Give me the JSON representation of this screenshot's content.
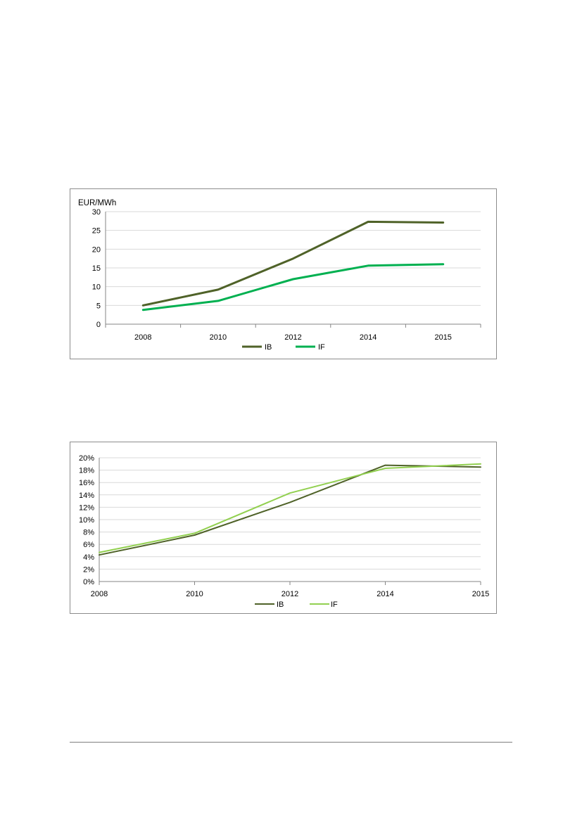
{
  "chart_data": [
    {
      "type": "line",
      "title": "",
      "ylabel": "EUR/MWh",
      "xlabel": "",
      "categories": [
        "2008",
        "2010",
        "2012",
        "2014",
        "2015"
      ],
      "ylim": [
        0,
        30
      ],
      "yticks": [
        0,
        5,
        10,
        15,
        20,
        25,
        30
      ],
      "ytick_labels": [
        "0",
        "5",
        "10",
        "15",
        "20",
        "25",
        "30"
      ],
      "grid": true,
      "legend": "bottom-center",
      "series": [
        {
          "name": "IB",
          "color": "#4f6228",
          "values": [
            5.0,
            9.2,
            17.5,
            27.3,
            27.1
          ]
        },
        {
          "name": "IF",
          "color": "#00b050",
          "values": [
            3.8,
            6.2,
            12.0,
            15.6,
            16.0
          ]
        }
      ]
    },
    {
      "type": "line",
      "title": "",
      "ylabel": "",
      "xlabel": "",
      "categories": [
        "2008",
        "2010",
        "2012",
        "2014",
        "2015"
      ],
      "ylim": [
        0,
        20
      ],
      "yticks": [
        0,
        2,
        4,
        6,
        8,
        10,
        12,
        14,
        16,
        18,
        20
      ],
      "ytick_labels": [
        "0%",
        "2%",
        "4%",
        "6%",
        "8%",
        "10%",
        "12%",
        "14%",
        "16%",
        "18%",
        "20%"
      ],
      "grid": true,
      "legend": "bottom-center",
      "series": [
        {
          "name": "IB",
          "color": "#4f6228",
          "values": [
            4.3,
            7.5,
            12.8,
            18.8,
            18.5
          ]
        },
        {
          "name": "IF",
          "color": "#92d050",
          "values": [
            4.7,
            7.8,
            14.3,
            18.3,
            19.0
          ]
        }
      ]
    }
  ]
}
